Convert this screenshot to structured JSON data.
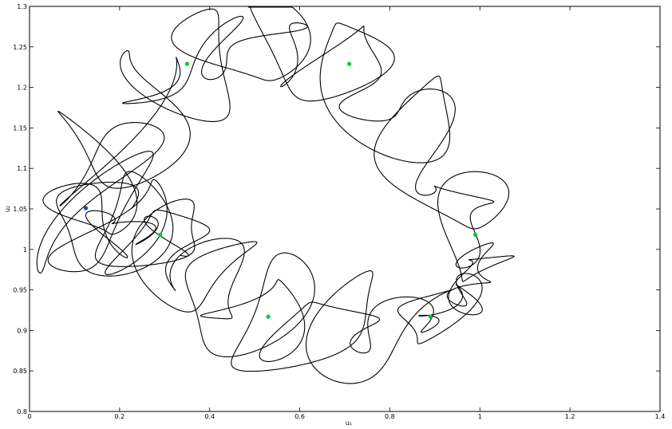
{
  "chart_data": {
    "type": "line",
    "title": "",
    "xlabel": "u₁",
    "ylabel": "u₂",
    "xlim": [
      0,
      1.4
    ],
    "ylim": [
      0.8,
      1.3
    ],
    "x_ticks": [
      "0",
      "0.2",
      "0.4",
      "0.6",
      "0.8",
      "1",
      "1.2",
      "1.4"
    ],
    "y_ticks": [
      "0.8",
      "0.85",
      "0.9",
      "0.95",
      "1",
      "1.05",
      "1.1",
      "1.15",
      "1.2",
      "1.25",
      "1.3"
    ],
    "grid": false,
    "legend": "none",
    "colors": {
      "trajectory": "#000000",
      "fixed_points": "#00cc33",
      "start_point": "#1f3fd6"
    },
    "ring": {
      "centers": [
        {
          "x": 0.13,
          "y": 1.05
        },
        {
          "x": 0.29,
          "y": 1.018
        },
        {
          "x": 0.53,
          "y": 0.917
        },
        {
          "x": 0.89,
          "y": 0.917
        },
        {
          "x": 0.99,
          "y": 1.018
        },
        {
          "x": 0.71,
          "y": 1.229
        },
        {
          "x": 0.35,
          "y": 1.229
        }
      ],
      "loops": 34
    },
    "series": [
      {
        "kind": "fixed_points",
        "x": [
          0.35,
          0.71,
          0.29,
          0.99,
          0.53,
          0.89
        ],
        "y": [
          1.229,
          1.229,
          1.018,
          1.018,
          0.917,
          0.917
        ]
      },
      {
        "kind": "start_point",
        "x": [
          0.125
        ],
        "y": [
          1.051
        ]
      }
    ]
  }
}
